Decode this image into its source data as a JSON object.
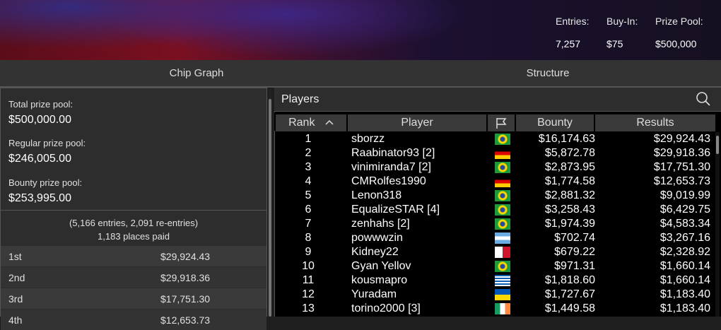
{
  "header": {
    "entries_label": "Entries:",
    "entries": "7,257",
    "buyin_label": "Buy-In:",
    "buyin": "$75",
    "prize_label": "Prize Pool:",
    "prize": "$500,000"
  },
  "tabs": [
    "Chip Graph",
    "Structure"
  ],
  "prize_panel": {
    "total_label": "Total prize pool:",
    "total": "$500,000.00",
    "regular_label": "Regular prize pool:",
    "regular": "$246,005.00",
    "bounty_label": "Bounty prize pool:",
    "bounty": "$253,995.00",
    "entries_note": "(5,166 entries, 2,091 re-entries)",
    "places_paid": "1,183 places paid",
    "payouts": [
      [
        "1st",
        "$29,924.43"
      ],
      [
        "2nd",
        "$29,918.36"
      ],
      [
        "3rd",
        "$17,751.30"
      ],
      [
        "4th",
        "$12,653.73"
      ]
    ]
  },
  "players": {
    "title": "Players",
    "columns": [
      "Rank",
      "Player",
      "Bounty",
      "Results"
    ],
    "rows": [
      [
        1,
        "sborzz",
        "$16,174.63",
        "$29,924.43"
      ],
      [
        2,
        "Raabinator93 [2]",
        "$5,872.78",
        "$29,918.36"
      ],
      [
        3,
        "vinimiranda7 [2]",
        "$2,873.95",
        "$17,751.30"
      ],
      [
        4,
        "CMRolfes1990",
        "$1,774.58",
        "$12,653.73"
      ],
      [
        5,
        "Lenon318",
        "$2,881.32",
        "$9,019.99"
      ],
      [
        6,
        "EqualizeSTAR [4]",
        "$3,258.43",
        "$6,429.75"
      ],
      [
        7,
        "zenhahs [2]",
        "$1,974.39",
        "$4,583.34"
      ],
      [
        8,
        "powwwzin",
        "$702.74",
        "$3,267.16"
      ],
      [
        9,
        "Kidney22",
        "$679.22",
        "$2,328.92"
      ],
      [
        10,
        "Gyan Yellov",
        "$971.31",
        "$1,660.14"
      ],
      [
        11,
        "kousmapro",
        "$1,818.60",
        "$1,660.14"
      ],
      [
        12,
        "Yuradam",
        "$1,727.67",
        "$1,183.40"
      ],
      [
        13,
        "torino2000 [3]",
        "$1,449.58",
        "$1,183.40"
      ]
    ]
  }
}
